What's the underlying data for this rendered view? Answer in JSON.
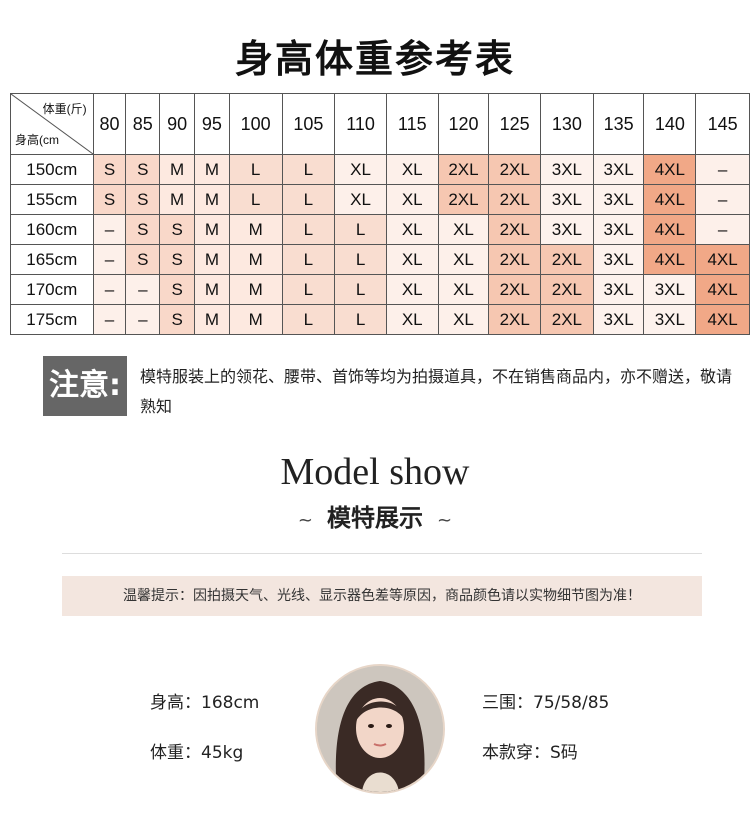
{
  "title": "身高体重参考表",
  "table": {
    "corner_weight": "体重(斤)",
    "corner_height": "身高(cm",
    "weights": [
      "80",
      "85",
      "90",
      "95",
      "100",
      "105",
      "110",
      "115",
      "120",
      "125",
      "130",
      "135",
      "140",
      "145"
    ],
    "rows": [
      {
        "height": "150cm",
        "sizes": [
          "S",
          "S",
          "M",
          "M",
          "L",
          "L",
          "XL",
          "XL",
          "2XL",
          "2XL",
          "3XL",
          "3XL",
          "4XL",
          "–"
        ]
      },
      {
        "height": "155cm",
        "sizes": [
          "S",
          "S",
          "M",
          "M",
          "L",
          "L",
          "XL",
          "XL",
          "2XL",
          "2XL",
          "3XL",
          "3XL",
          "4XL",
          "–"
        ]
      },
      {
        "height": "160cm",
        "sizes": [
          "–",
          "S",
          "S",
          "M",
          "M",
          "L",
          "L",
          "XL",
          "XL",
          "2XL",
          "3XL",
          "3XL",
          "4XL",
          "–"
        ]
      },
      {
        "height": "165cm",
        "sizes": [
          "–",
          "S",
          "S",
          "M",
          "M",
          "L",
          "L",
          "XL",
          "XL",
          "2XL",
          "2XL",
          "3XL",
          "4XL",
          "4XL"
        ]
      },
      {
        "height": "170cm",
        "sizes": [
          "–",
          "–",
          "S",
          "M",
          "M",
          "L",
          "L",
          "XL",
          "XL",
          "2XL",
          "2XL",
          "3XL",
          "3XL",
          "4XL"
        ]
      },
      {
        "height": "175cm",
        "sizes": [
          "–",
          "–",
          "S",
          "M",
          "M",
          "L",
          "L",
          "XL",
          "XL",
          "2XL",
          "2XL",
          "3XL",
          "3XL",
          "4XL"
        ]
      }
    ],
    "size_colors": {
      "–": "#fdf0ea",
      "S": "#f9d8c9",
      "M": "#fde9e0",
      "L": "#f9ddd0",
      "XL": "#fdf0ea",
      "2XL": "#f6c7b1",
      "3XL": "#fdf2ed",
      "4XL": "#f1a887"
    }
  },
  "note": {
    "badge": "注意:",
    "text": "模特服装上的领花、腰带、首饰等均为拍摄道具，不在销售商品内，亦不赠送，敬请熟知"
  },
  "model_show": {
    "title_en": "Model show",
    "title_cn": "模特展示",
    "ornament": "~"
  },
  "tip": "温馨提示：因拍摄天气、光线、显示器色差等原因，商品颜色请以实物细节图为准！",
  "model": {
    "height": "身高：168cm",
    "weight": "体重：45kg",
    "measurements": "三围：75/58/85",
    "size_worn": "本款穿：S码"
  }
}
